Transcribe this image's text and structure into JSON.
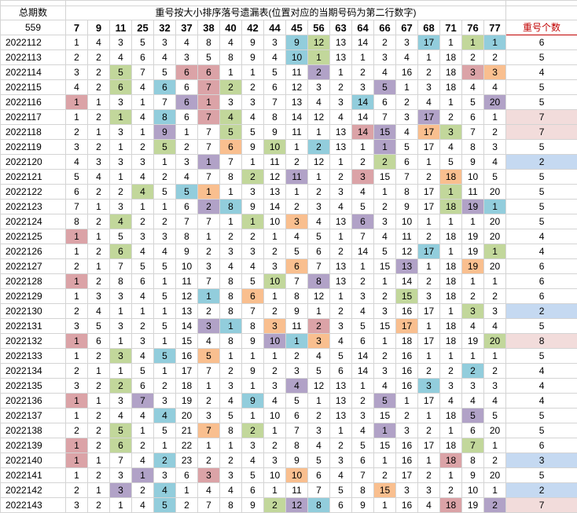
{
  "header": {
    "top_label": "总期数",
    "count_label": "559",
    "title": "重号按大小排序落号遗漏表(位置对应的当期号码为第二行数字)",
    "count_header": "重号个数",
    "numbers": [
      "7",
      "9",
      "11",
      "25",
      "32",
      "37",
      "38",
      "40",
      "42",
      "44",
      "45",
      "56",
      "63",
      "64",
      "66",
      "67",
      "68",
      "71",
      "76",
      "77"
    ]
  },
  "rows": [
    {
      "period": "2022112",
      "cells": [
        "1",
        "4",
        "3",
        "5",
        "3",
        "4",
        "8",
        "4",
        "9",
        "3",
        "9",
        "12",
        "13",
        "14",
        "2",
        "3",
        "17",
        "1",
        "1",
        "1"
      ],
      "count": "6"
    },
    {
      "period": "2022113",
      "cells": [
        "2",
        "2",
        "4",
        "6",
        "4",
        "3",
        "5",
        "8",
        "9",
        "4",
        "10",
        "1",
        "13",
        "1",
        "3",
        "4",
        "1",
        "18",
        "2",
        "2"
      ],
      "count": "5"
    },
    {
      "period": "2022114",
      "cells": [
        "3",
        "2",
        "5",
        "7",
        "5",
        "6",
        "6",
        "1",
        "1",
        "5",
        "11",
        "2",
        "1",
        "2",
        "4",
        "16",
        "2",
        "18",
        "3",
        "3"
      ],
      "count": "4"
    },
    {
      "period": "2022115",
      "cells": [
        "4",
        "2",
        "6",
        "4",
        "6",
        "6",
        "7",
        "2",
        "2",
        "6",
        "12",
        "3",
        "2",
        "3",
        "5",
        "1",
        "3",
        "18",
        "4",
        "4"
      ],
      "count": "5"
    },
    {
      "period": "2022116",
      "cells": [
        "1",
        "1",
        "3",
        "1",
        "7",
        "6",
        "1",
        "3",
        "3",
        "7",
        "13",
        "4",
        "3",
        "14",
        "6",
        "2",
        "4",
        "1",
        "5",
        "20"
      ],
      "count": "5"
    },
    {
      "period": "2022117",
      "cells": [
        "1",
        "2",
        "1",
        "4",
        "8",
        "6",
        "7",
        "4",
        "4",
        "8",
        "14",
        "12",
        "4",
        "14",
        "7",
        "3",
        "17",
        "2",
        "6",
        "1"
      ],
      "count": "7"
    },
    {
      "period": "2022118",
      "cells": [
        "2",
        "1",
        "3",
        "1",
        "9",
        "1",
        "7",
        "5",
        "5",
        "9",
        "11",
        "1",
        "13",
        "14",
        "15",
        "4",
        "17",
        "3",
        "7",
        "2"
      ],
      "count": "7"
    },
    {
      "period": "2022119",
      "cells": [
        "3",
        "2",
        "1",
        "2",
        "5",
        "2",
        "7",
        "6",
        "9",
        "10",
        "1",
        "2",
        "13",
        "1",
        "1",
        "5",
        "17",
        "4",
        "8",
        "3"
      ],
      "count": "5"
    },
    {
      "period": "2022120",
      "cells": [
        "4",
        "3",
        "3",
        "3",
        "1",
        "3",
        "1",
        "7",
        "1",
        "11",
        "2",
        "12",
        "1",
        "2",
        "2",
        "6",
        "1",
        "5",
        "9",
        "4"
      ],
      "count": "2"
    },
    {
      "period": "2022121",
      "cells": [
        "5",
        "4",
        "1",
        "4",
        "2",
        "4",
        "7",
        "8",
        "2",
        "12",
        "11",
        "1",
        "2",
        "3",
        "15",
        "7",
        "2",
        "18",
        "10",
        "5"
      ],
      "count": "5"
    },
    {
      "period": "2022122",
      "cells": [
        "6",
        "2",
        "2",
        "4",
        "5",
        "5",
        "1",
        "1",
        "3",
        "13",
        "1",
        "2",
        "3",
        "4",
        "1",
        "8",
        "17",
        "1",
        "11",
        "20"
      ],
      "count": "5"
    },
    {
      "period": "2022123",
      "cells": [
        "7",
        "1",
        "3",
        "1",
        "1",
        "6",
        "2",
        "8",
        "9",
        "14",
        "2",
        "3",
        "4",
        "5",
        "2",
        "9",
        "17",
        "18",
        "19",
        "1"
      ],
      "count": "5"
    },
    {
      "period": "2022124",
      "cells": [
        "8",
        "2",
        "4",
        "2",
        "2",
        "7",
        "7",
        "1",
        "1",
        "10",
        "3",
        "4",
        "13",
        "6",
        "3",
        "10",
        "1",
        "1",
        "1",
        "20"
      ],
      "count": "5"
    },
    {
      "period": "2022125",
      "cells": [
        "1",
        "1",
        "5",
        "3",
        "3",
        "8",
        "1",
        "2",
        "2",
        "1",
        "4",
        "5",
        "1",
        "7",
        "4",
        "11",
        "2",
        "18",
        "19",
        "20"
      ],
      "count": "4"
    },
    {
      "period": "2022126",
      "cells": [
        "1",
        "2",
        "6",
        "4",
        "4",
        "9",
        "2",
        "3",
        "3",
        "2",
        "5",
        "6",
        "2",
        "14",
        "5",
        "12",
        "17",
        "1",
        "19",
        "1"
      ],
      "count": "4"
    },
    {
      "period": "2022127",
      "cells": [
        "2",
        "1",
        "7",
        "5",
        "5",
        "10",
        "3",
        "4",
        "4",
        "3",
        "6",
        "7",
        "13",
        "1",
        "15",
        "13",
        "1",
        "18",
        "19",
        "20"
      ],
      "count": "6"
    },
    {
      "period": "2022128",
      "cells": [
        "1",
        "2",
        "8",
        "6",
        "1",
        "11",
        "7",
        "8",
        "5",
        "10",
        "7",
        "8",
        "13",
        "2",
        "1",
        "14",
        "2",
        "18",
        "1",
        "1"
      ],
      "count": "6"
    },
    {
      "period": "2022129",
      "cells": [
        "1",
        "3",
        "3",
        "4",
        "5",
        "12",
        "1",
        "8",
        "6",
        "1",
        "8",
        "12",
        "1",
        "3",
        "2",
        "15",
        "3",
        "18",
        "2",
        "2"
      ],
      "count": "6"
    },
    {
      "period": "2022130",
      "cells": [
        "2",
        "4",
        "1",
        "1",
        "1",
        "13",
        "2",
        "8",
        "7",
        "2",
        "9",
        "1",
        "2",
        "4",
        "3",
        "16",
        "17",
        "1",
        "3",
        "3"
      ],
      "count": "2"
    },
    {
      "period": "2022131",
      "cells": [
        "3",
        "5",
        "3",
        "2",
        "5",
        "14",
        "3",
        "1",
        "8",
        "3",
        "11",
        "2",
        "3",
        "5",
        "15",
        "17",
        "1",
        "18",
        "4",
        "4"
      ],
      "count": "5"
    },
    {
      "period": "2022132",
      "cells": [
        "1",
        "6",
        "1",
        "3",
        "1",
        "15",
        "4",
        "8",
        "9",
        "10",
        "1",
        "3",
        "4",
        "6",
        "1",
        "18",
        "17",
        "18",
        "19",
        "20"
      ],
      "count": "8"
    },
    {
      "period": "2022133",
      "cells": [
        "1",
        "2",
        "3",
        "4",
        "5",
        "16",
        "5",
        "1",
        "1",
        "1",
        "2",
        "4",
        "5",
        "14",
        "2",
        "16",
        "1",
        "1",
        "1",
        "1"
      ],
      "count": "5"
    },
    {
      "period": "2022134",
      "cells": [
        "2",
        "1",
        "1",
        "5",
        "1",
        "17",
        "7",
        "2",
        "9",
        "2",
        "3",
        "5",
        "6",
        "14",
        "3",
        "16",
        "2",
        "2",
        "2",
        "2"
      ],
      "count": "4"
    },
    {
      "period": "2022135",
      "cells": [
        "3",
        "2",
        "2",
        "6",
        "2",
        "18",
        "1",
        "3",
        "1",
        "3",
        "4",
        "12",
        "13",
        "1",
        "4",
        "16",
        "3",
        "3",
        "3",
        "3"
      ],
      "count": "4"
    },
    {
      "period": "2022136",
      "cells": [
        "1",
        "1",
        "3",
        "7",
        "3",
        "19",
        "2",
        "4",
        "9",
        "4",
        "5",
        "1",
        "13",
        "2",
        "5",
        "1",
        "17",
        "4",
        "4",
        "4"
      ],
      "count": "4"
    },
    {
      "period": "2022137",
      "cells": [
        "1",
        "2",
        "4",
        "4",
        "4",
        "20",
        "3",
        "5",
        "1",
        "10",
        "6",
        "2",
        "13",
        "3",
        "15",
        "2",
        "1",
        "18",
        "5",
        "5"
      ],
      "count": "5"
    },
    {
      "period": "2022138",
      "cells": [
        "2",
        "2",
        "5",
        "1",
        "5",
        "21",
        "7",
        "8",
        "2",
        "1",
        "7",
        "3",
        "1",
        "4",
        "1",
        "3",
        "2",
        "1",
        "6",
        "20"
      ],
      "count": "5"
    },
    {
      "period": "2022139",
      "cells": [
        "1",
        "2",
        "6",
        "2",
        "1",
        "22",
        "1",
        "1",
        "3",
        "2",
        "8",
        "4",
        "2",
        "5",
        "15",
        "16",
        "17",
        "18",
        "7",
        "1"
      ],
      "count": "6"
    },
    {
      "period": "2022140",
      "cells": [
        "1",
        "1",
        "7",
        "4",
        "2",
        "23",
        "2",
        "2",
        "4",
        "3",
        "9",
        "5",
        "3",
        "6",
        "1",
        "16",
        "1",
        "18",
        "8",
        "2"
      ],
      "count": "3"
    },
    {
      "period": "2022141",
      "cells": [
        "1",
        "2",
        "3",
        "1",
        "3",
        "6",
        "3",
        "3",
        "5",
        "10",
        "10",
        "6",
        "4",
        "7",
        "2",
        "17",
        "2",
        "1",
        "9",
        "20"
      ],
      "count": "5"
    },
    {
      "period": "2022142",
      "cells": [
        "2",
        "1",
        "3",
        "2",
        "4",
        "1",
        "4",
        "4",
        "6",
        "1",
        "11",
        "7",
        "5",
        "8",
        "15",
        "3",
        "3",
        "2",
        "10",
        "1"
      ],
      "count": "2"
    },
    {
      "period": "2022143",
      "cells": [
        "3",
        "2",
        "1",
        "4",
        "5",
        "2",
        "7",
        "8",
        "9",
        "2",
        "12",
        "8",
        "6",
        "9",
        "1",
        "16",
        "4",
        "18",
        "19",
        "2"
      ],
      "count": "7"
    }
  ],
  "colors": {
    "red": "#dba3a7",
    "green": "#c2d79b",
    "blue": "#92cddc",
    "orange": "#f9bf8f",
    "purple": "#b1a2c7",
    "pink": "#f2dcdb",
    "lightblue": "#c5d9f1"
  },
  "highlights": [
    "..........bg....b.gb..p",
    "..........bg.........p",
    "..g..rr....p......ro..p",
    "..g.b.rg......p.....p",
    "r....pr......b.....p.o",
    "..g.b.rg........p.....",
    "....p..g.....rp.og....",
    "....g..o.g.b..p.......",
    "......p.......g.......",
    "........g.p..r...o..p.",
    "...g.bo..........g....",
    "......pb.........gpb..",
    "..g.....g.o..p.......o",
    "r.....................",
    "..g.............b..g..",
    "..........o....p..o.pb",
    "r........g.p.........b",
    "......b.o......g.....",
    "..................g...",
    "......pb.o.r...o......",
    "r........pbo.......gpb",
    "..g.b.o..............",
    "..................b...",
    "..g.......p.....b....",
    "r..p....b.....p.......",
    "....b.............p...",
    "..g...o.g.....p.......",
    "r.g...............g...",
    "r...b............r...",
    "...p..r...o...........",
    "..p.b.........o.......",
    "....b....gpb.....r.pb."
  ],
  "count_colors": [
    "",
    "",
    "",
    "",
    "",
    "pink",
    "pink",
    "",
    "blue",
    "",
    "",
    "",
    "",
    "",
    "",
    "",
    "",
    "",
    "blue",
    "",
    "pink",
    "",
    "",
    "",
    "",
    "",
    "",
    "",
    "blue",
    "",
    "blue",
    "pink"
  ]
}
